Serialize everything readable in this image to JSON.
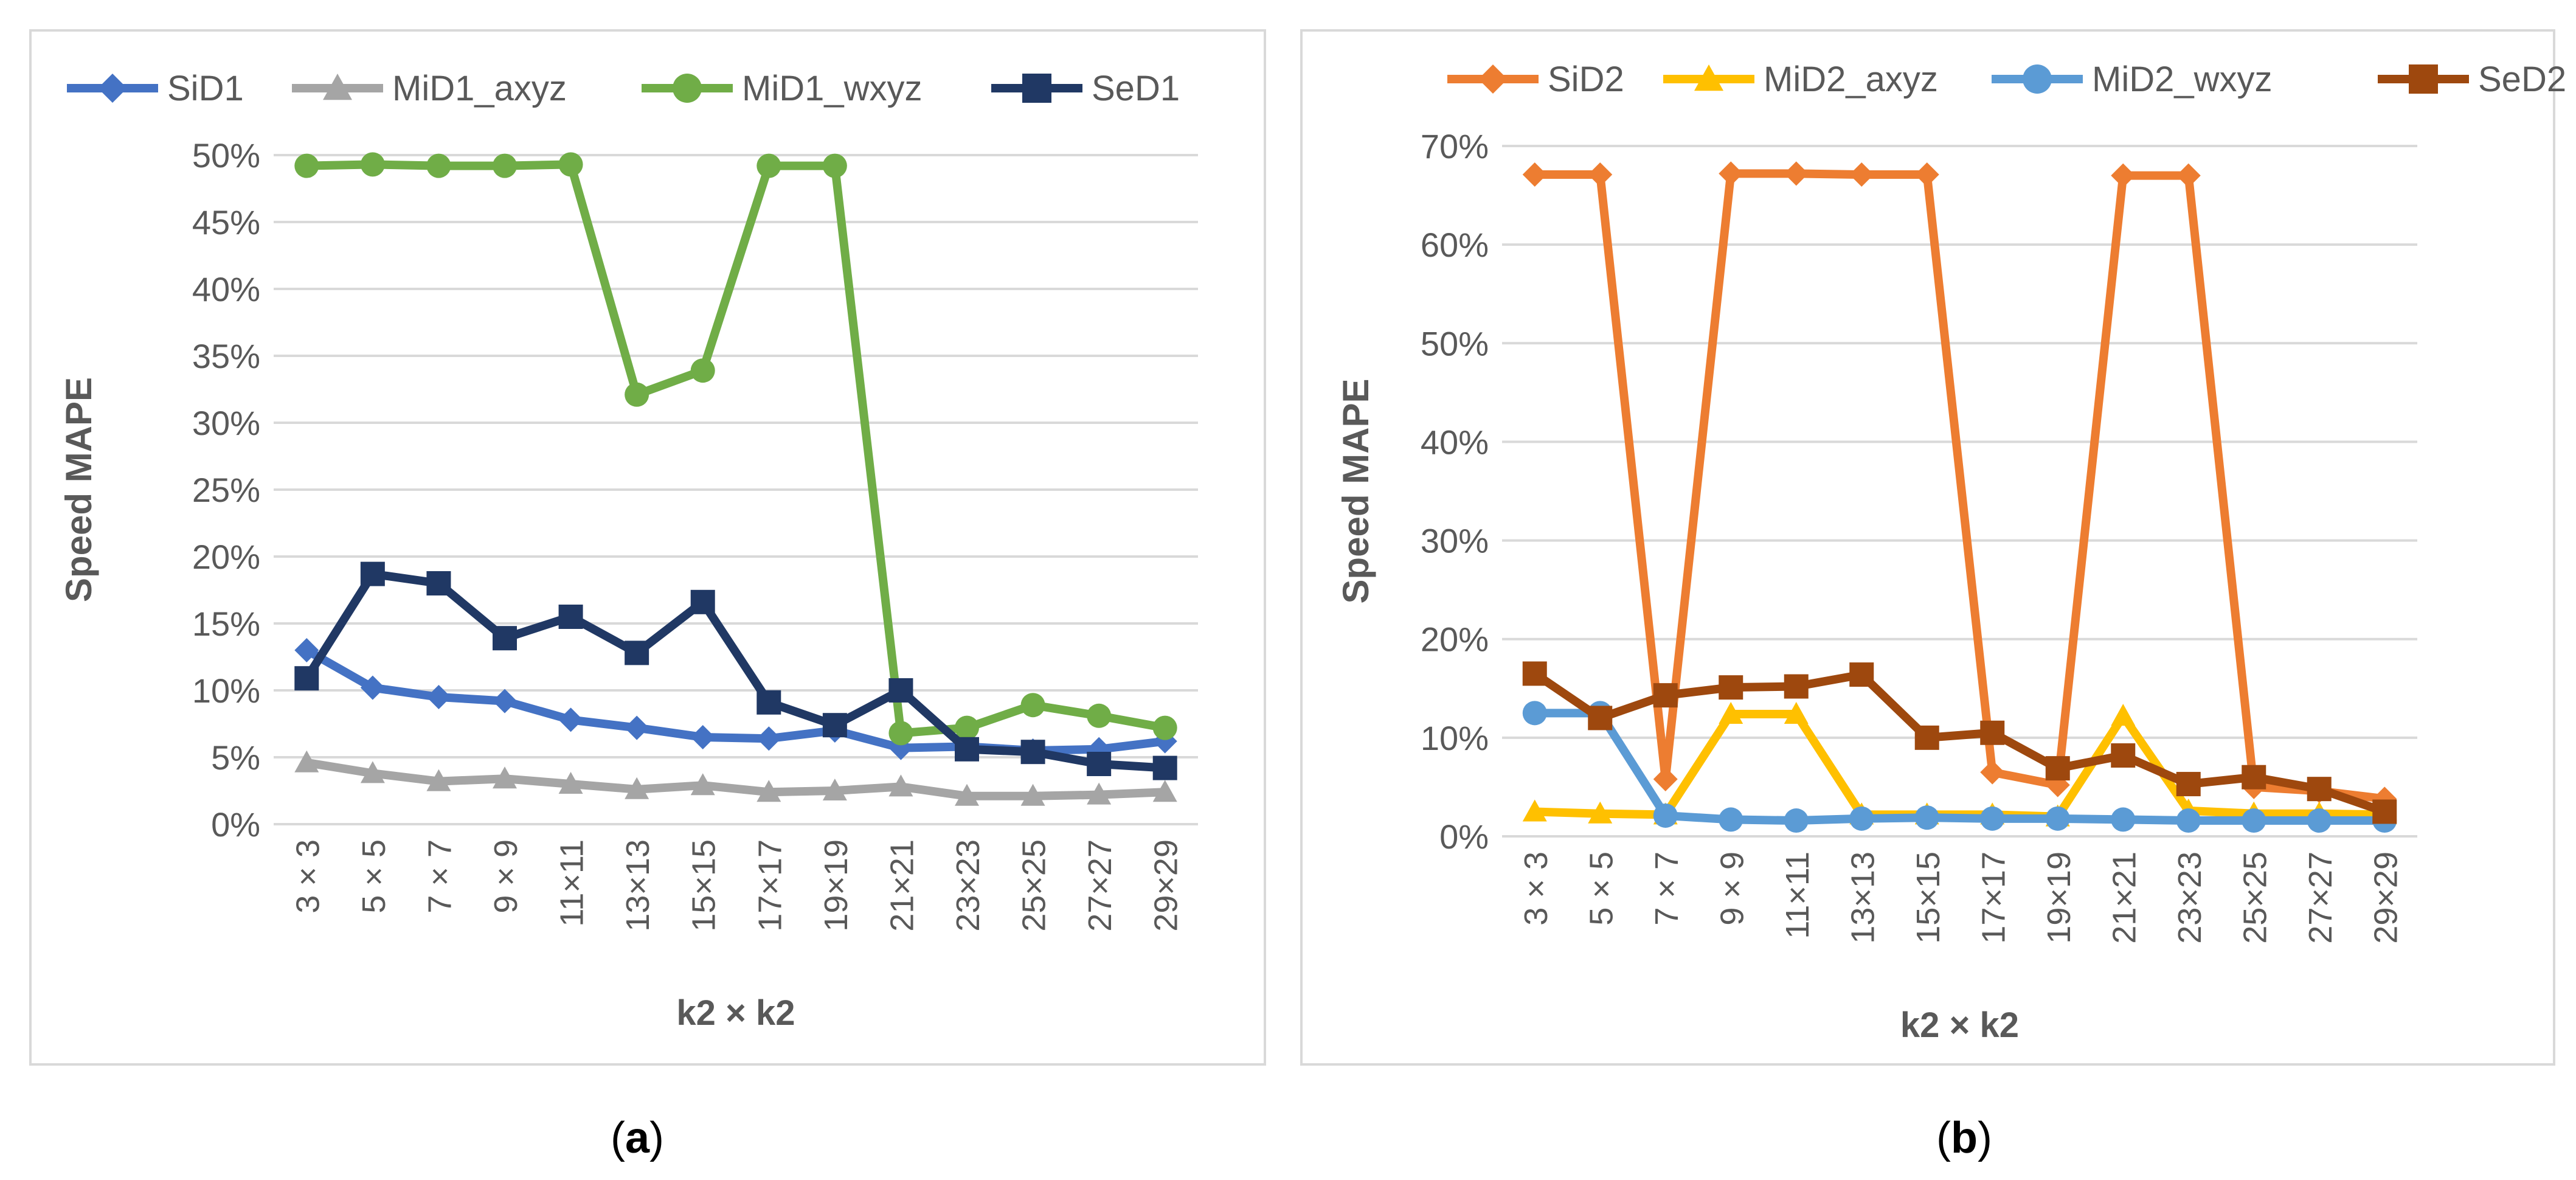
{
  "chart_data": [
    {
      "type": "line",
      "panel_label": "(a)",
      "panel_letter": "a",
      "xlabel": "k2 × k2",
      "ylabel": "Speed MAPE",
      "ylim": [
        0,
        50
      ],
      "yticks": [
        "0%",
        "5%",
        "10%",
        "15%",
        "20%",
        "25%",
        "30%",
        "35%",
        "40%",
        "45%",
        "50%"
      ],
      "categories": [
        "3 × 3",
        "5 × 5",
        "7 × 7",
        "9 × 9",
        "11×11",
        "13×13",
        "15×15",
        "17×17",
        "19×19",
        "21×21",
        "23×23",
        "25×25",
        "27×27",
        "29×29"
      ],
      "legend_position": "top",
      "series": [
        {
          "name": "SiD1",
          "color": "#4472C4",
          "marker": "diamond",
          "values": [
            13.0,
            10.2,
            9.5,
            9.2,
            7.8,
            7.2,
            6.5,
            6.4,
            7.0,
            5.7,
            5.8,
            5.5,
            5.6,
            6.2
          ]
        },
        {
          "name": "MiD1_axyz",
          "color": "#A5A5A5",
          "marker": "triangle",
          "values": [
            4.6,
            3.8,
            3.2,
            3.4,
            3.0,
            2.6,
            2.9,
            2.4,
            2.5,
            2.8,
            2.1,
            2.1,
            2.2,
            2.4
          ]
        },
        {
          "name": "MiD1_wxyz",
          "color": "#70AD47",
          "marker": "circle",
          "values": [
            49.2,
            49.3,
            49.2,
            49.2,
            49.3,
            32.1,
            33.9,
            49.2,
            49.2,
            6.8,
            7.2,
            8.9,
            8.1,
            7.2
          ]
        },
        {
          "name": "SeD1",
          "color": "#203864",
          "marker": "square",
          "values": [
            10.9,
            18.7,
            18.0,
            13.9,
            15.5,
            12.8,
            16.6,
            9.1,
            7.4,
            10.0,
            5.6,
            5.4,
            4.5,
            4.2
          ]
        }
      ]
    },
    {
      "type": "line",
      "panel_label": "(b)",
      "panel_letter": "b",
      "xlabel": "k2 × k2",
      "ylabel": "Speed MAPE",
      "ylim": [
        0,
        70
      ],
      "yticks": [
        "0%",
        "10%",
        "20%",
        "30%",
        "40%",
        "50%",
        "60%",
        "70%"
      ],
      "categories": [
        "3 × 3",
        "5 × 5",
        "7 × 7",
        "9 × 9",
        "11×11",
        "13×13",
        "15×15",
        "17×17",
        "19×19",
        "21×21",
        "23×23",
        "25×25",
        "27×27",
        "29×29"
      ],
      "legend_position": "top",
      "series": [
        {
          "name": "SiD2",
          "color": "#ED7D31",
          "marker": "diamond",
          "values": [
            67.1,
            67.1,
            5.8,
            67.2,
            67.2,
            67.1,
            67.1,
            6.5,
            5.2,
            67.0,
            67.0,
            5.0,
            4.6,
            3.8
          ]
        },
        {
          "name": "MiD2_axyz",
          "color": "#FFC000",
          "marker": "triangle",
          "values": [
            2.5,
            2.3,
            2.2,
            12.4,
            12.4,
            2.2,
            2.2,
            2.2,
            2.0,
            12.2,
            2.6,
            2.3,
            2.3,
            2.2
          ]
        },
        {
          "name": "MiD2_wxyz",
          "color": "#5B9BD5",
          "marker": "circle",
          "values": [
            12.5,
            12.5,
            2.1,
            1.7,
            1.6,
            1.8,
            1.9,
            1.8,
            1.8,
            1.7,
            1.6,
            1.6,
            1.6,
            1.6
          ]
        },
        {
          "name": "SeD2",
          "color": "#9E480E",
          "marker": "square",
          "values": [
            16.5,
            12.0,
            14.3,
            15.1,
            15.2,
            16.4,
            10.0,
            10.5,
            6.9,
            8.2,
            5.3,
            6.0,
            4.8,
            2.5
          ]
        }
      ]
    }
  ]
}
